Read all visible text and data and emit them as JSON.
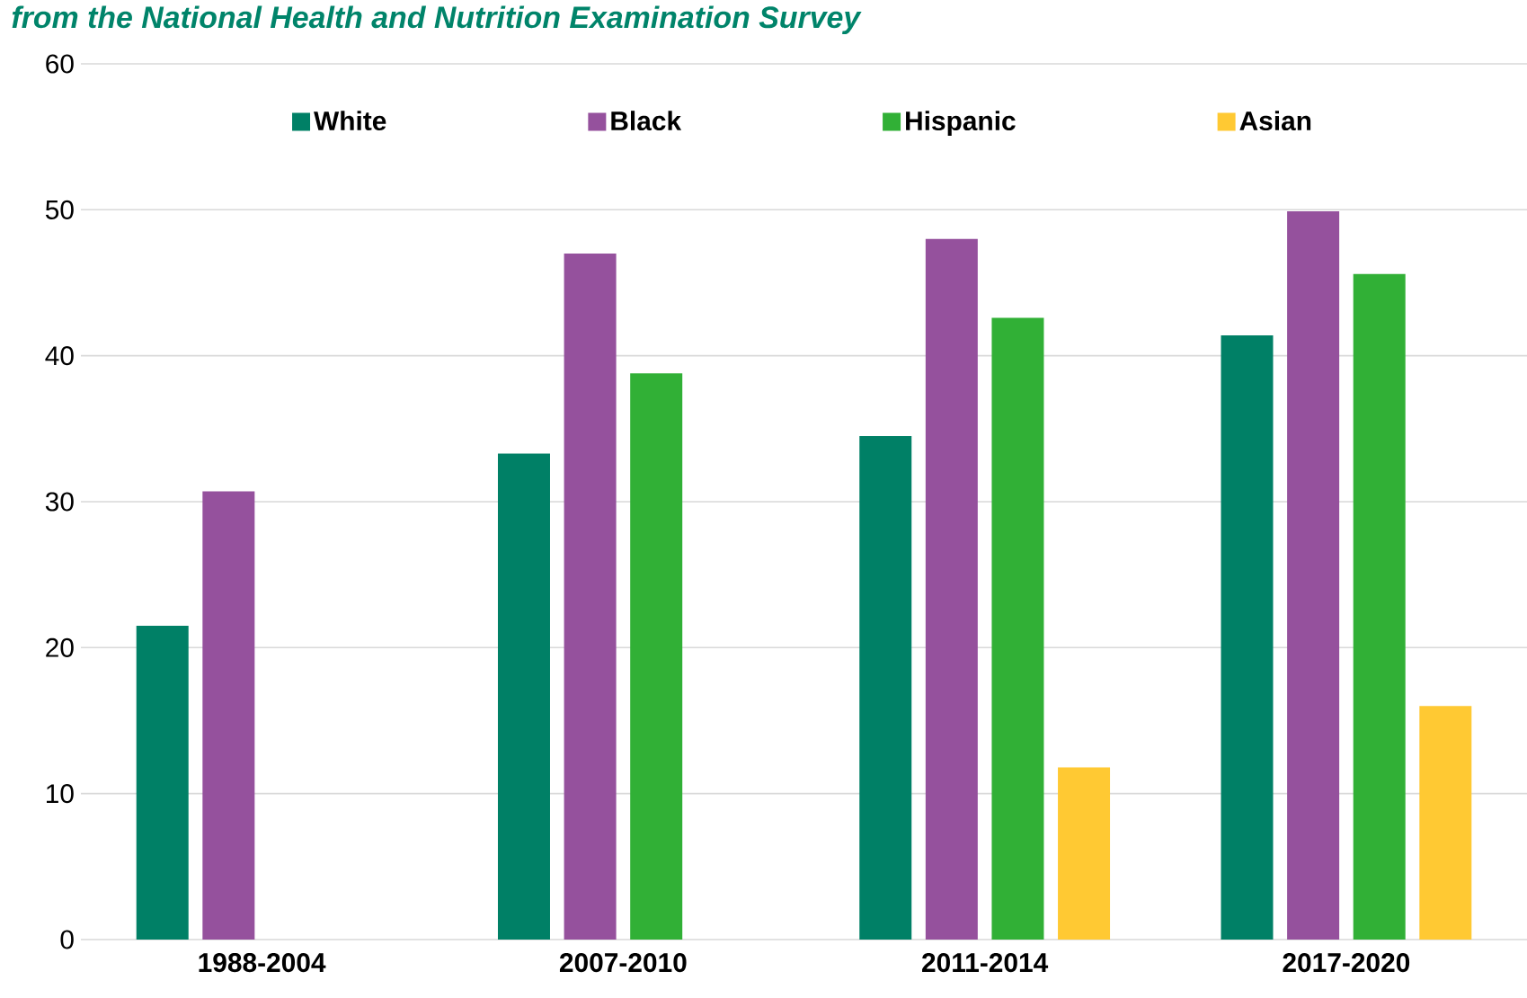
{
  "chart_data": {
    "type": "bar",
    "title": "from the National Health and Nutrition Examination Survey",
    "categories": [
      "1988-2004",
      "2007-2010",
      "2011-2014",
      "2017-2020"
    ],
    "series": [
      {
        "name": "White",
        "color": "#008066",
        "values": [
          21.5,
          33.3,
          34.5,
          41.4
        ]
      },
      {
        "name": "Black",
        "color": "#95519D",
        "values": [
          30.7,
          47.0,
          48.0,
          49.9
        ]
      },
      {
        "name": "Hispanic",
        "color": "#31B036",
        "values": [
          null,
          38.8,
          42.6,
          45.6
        ]
      },
      {
        "name": "Asian",
        "color": "#FFC933",
        "values": [
          null,
          null,
          11.8,
          16.0
        ]
      }
    ],
    "ylim": [
      0,
      60
    ],
    "yticks": [
      0,
      10,
      20,
      30,
      40,
      50,
      60
    ],
    "grid": "y",
    "legend": "top"
  }
}
